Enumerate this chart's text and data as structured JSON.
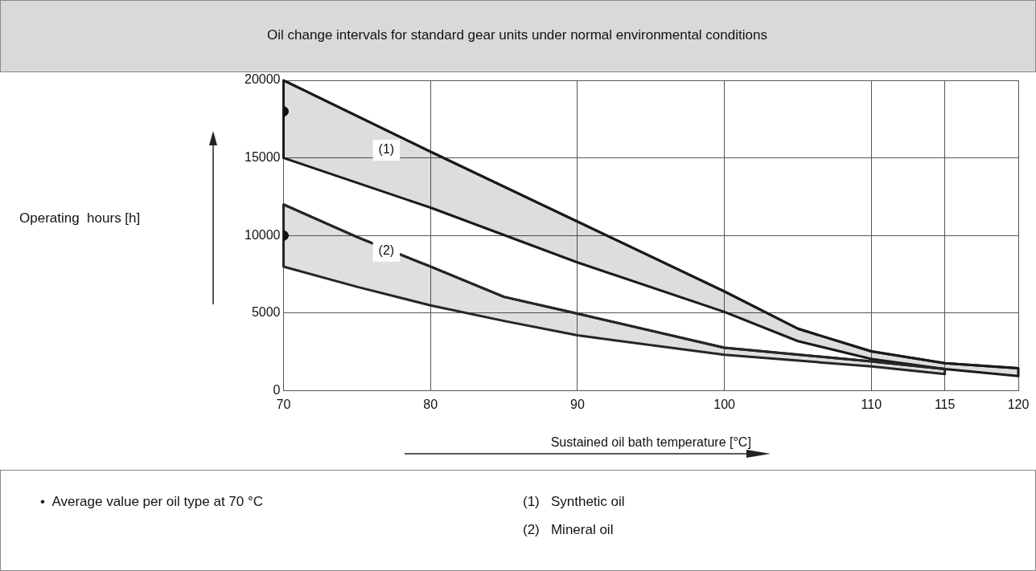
{
  "chart_data": {
    "type": "line",
    "title": "Oil change intervals for standard gear units under normal environmental conditions",
    "xlabel": "Sustained oil bath temperature [°C]",
    "xlim": [
      70,
      120
    ],
    "xticks": [
      70,
      80,
      90,
      100,
      110,
      115,
      120
    ],
    "ylim": [
      0,
      20000
    ],
    "yticks": [
      0,
      5000,
      10000,
      15000,
      20000
    ],
    "grid": true,
    "legend": false,
    "marker": "none",
    "line_style": "solid",
    "series": [
      {
        "color": "#1a1a1a",
        "x": [
          70,
          80,
          90,
          100,
          105,
          110,
          115,
          120
        ],
        "values": [
          20000,
          15400,
          10900,
          6400,
          4000,
          2540,
          1780,
          1450
        ],
        "upper": [
          20000,
          15400,
          10900,
          6400,
          4000,
          2540,
          1780,
          1450
        ],
        "lower": [
          15000,
          11800,
          8270,
          5080,
          3200,
          2050,
          1400,
          950
        ]
      },
      {
        "color": "#262626",
        "x": [
          70,
          75,
          80,
          85,
          90,
          100,
          110,
          115
        ],
        "values": [
          12000,
          9900,
          8000,
          6050,
          4970,
          2770,
          1890,
          1400
        ],
        "upper": [
          12000,
          9900,
          8000,
          6050,
          4970,
          2770,
          1890,
          1400
        ],
        "lower": [
          8000,
          6700,
          5500,
          4500,
          3570,
          2320,
          1570,
          1080
        ]
      },
      {
        "type": "scatter",
        "color": "#111111",
        "marker": "circle",
        "x": [
          70,
          70
        ],
        "values": [
          18000,
          10000
        ]
      }
    ],
    "annotations": [
      {
        "text": "(1)",
        "x": 77,
        "y": 15500
      },
      {
        "text": "(2)",
        "x": 77,
        "y": 9000
      },
      "Operating  hours [h]",
      "•  Average value per oil type at 70 °C",
      "(1)   Synthetic oil",
      "(2)   Mineral oil"
    ]
  }
}
